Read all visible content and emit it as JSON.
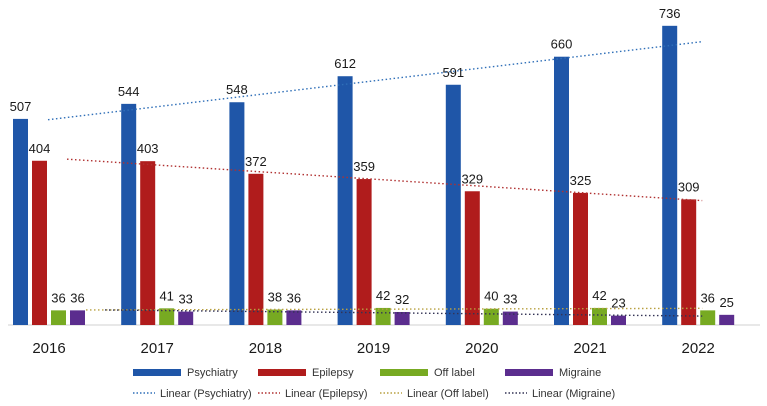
{
  "chart_data": {
    "type": "bar",
    "title": "",
    "xlabel": "",
    "ylabel": "",
    "ylim": [
      0,
      760
    ],
    "grid": false,
    "legend_position": "bottom",
    "categories": [
      "2016",
      "2017",
      "2018",
      "2019",
      "2020",
      "2021",
      "2022"
    ],
    "series": [
      {
        "name": "Psychiatry",
        "values": [
          507,
          544,
          548,
          612,
          591,
          660,
          736
        ],
        "color": "#1f56a8"
      },
      {
        "name": "Epilepsy",
        "values": [
          404,
          403,
          372,
          359,
          329,
          325,
          309
        ],
        "color": "#b01c1c"
      },
      {
        "name": "Off label",
        "values": [
          36,
          41,
          38,
          42,
          40,
          42,
          36
        ],
        "color": "#77aa22"
      },
      {
        "name": "Migraine",
        "values": [
          36,
          33,
          36,
          32,
          33,
          23,
          25
        ],
        "color": "#5b2d8e"
      }
    ],
    "trendlines": [
      {
        "name": "Linear (Psychiatry)",
        "series": "Psychiatry",
        "color": "#2f6fb8",
        "start": 505,
        "end": 697
      },
      {
        "name": "Linear (Epilepsy)",
        "series": "Epilepsy",
        "color": "#b03030",
        "start": 408,
        "end": 306
      },
      {
        "name": "Linear (Off label)",
        "series": "Off label",
        "color": "#b8a040",
        "start": 37,
        "end": 41
      },
      {
        "name": "Linear (Migraine)",
        "series": "Migraine",
        "color": "#333355",
        "start": 37,
        "end": 22
      }
    ]
  }
}
